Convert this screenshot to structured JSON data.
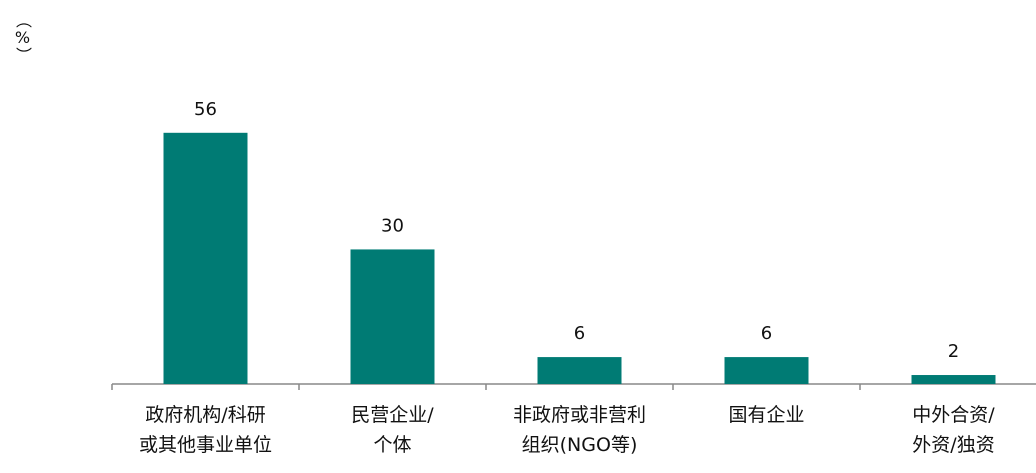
{
  "chart_data": {
    "type": "bar",
    "y_label": "（%）",
    "categories": [
      "政府机构/科研\n或其他事业单位",
      "民营企业/\n个体",
      "非政府或非营利\n组织(NGO等)",
      "国有企业",
      "中外合资/\n外资/独资"
    ],
    "values": [
      56,
      30,
      6,
      6,
      2
    ],
    "color": "#007b74",
    "ylim": [
      0,
      70
    ]
  }
}
